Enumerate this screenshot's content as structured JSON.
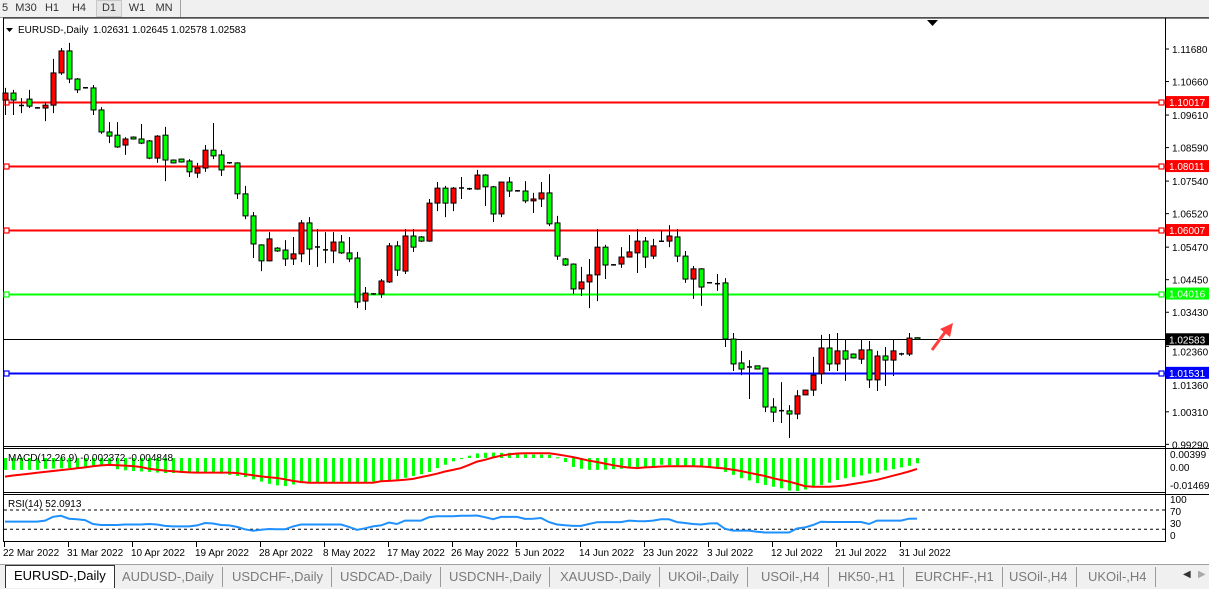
{
  "toolbar": {
    "timeframes": [
      "5",
      "M30",
      "H1",
      "H4",
      "D1",
      "W1",
      "MN"
    ],
    "active": "D1"
  },
  "chart": {
    "symbol_label": "EURUSD-,Daily",
    "ohlc_readout": "1.02631 1.02645 1.02578 1.02583",
    "price_ticks": [
      "1.11680",
      "1.10660",
      "1.09610",
      "1.08590",
      "1.07540",
      "1.06520",
      "1.05470",
      "1.04450",
      "1.03430",
      "1.02360",
      "1.01360",
      "1.00310",
      "0.99290"
    ],
    "levels": [
      {
        "price": "1.10017",
        "color": "#ff0000"
      },
      {
        "price": "1.08011",
        "color": "#ff0000"
      },
      {
        "price": "1.06007",
        "color": "#ff0000"
      },
      {
        "price": "1.04016",
        "color": "#00ff00"
      },
      {
        "price": "1.01531",
        "color": "#0000ff"
      }
    ],
    "bid_line": {
      "price": "1.02583",
      "color": "#000000"
    },
    "annotation_icon": "red-up-arrow",
    "shift_marker_icon": "down-triangle"
  },
  "chart_data": {
    "type": "candlestick",
    "bull_color": "#ff0000",
    "bear_color": "#00ff00",
    "ylim": [
      0.9929,
      1.1168
    ],
    "ohlc": [
      [
        1.1008,
        1.1046,
        1.0961,
        1.103
      ],
      [
        1.103,
        1.104,
        1.0961,
        1.1008
      ],
      [
        1.0992,
        1.1014,
        1.0967,
        1.099
      ],
      [
        1.1011,
        1.104,
        1.0983,
        1.0989
      ],
      [
        1.0984,
        1.0986,
        1.0981,
        1.0983
      ],
      [
        1.0983,
        1.1002,
        1.0942,
        1.0992
      ],
      [
        1.0992,
        1.1137,
        1.0967,
        1.1093
      ],
      [
        1.1093,
        1.1171,
        1.1087,
        1.1162
      ],
      [
        1.1162,
        1.1187,
        1.1061,
        1.1074
      ],
      [
        1.1074,
        1.1077,
        1.103,
        1.104
      ],
      [
        1.1047,
        1.1049,
        1.1044,
        1.1046
      ],
      [
        1.1046,
        1.1055,
        1.0961,
        1.0977
      ],
      [
        1.0977,
        1.0986,
        1.0902,
        1.0908
      ],
      [
        1.0908,
        1.0939,
        1.0873,
        1.0895
      ],
      [
        1.0898,
        1.0939,
        1.0858,
        1.0861
      ],
      [
        1.0867,
        1.0892,
        1.0836,
        1.0886
      ],
      [
        1.0892,
        1.0894,
        1.0884,
        1.0886
      ],
      [
        1.0886,
        1.0933,
        1.087,
        1.0873
      ],
      [
        1.088,
        1.0883,
        1.0823,
        1.0826
      ],
      [
        1.0826,
        1.0898,
        1.0811,
        1.0895
      ],
      [
        1.0898,
        1.0924,
        1.0754,
        1.082
      ],
      [
        1.082,
        1.0822,
        1.081,
        1.0811
      ],
      [
        1.0823,
        1.0825,
        1.0812,
        1.0814
      ],
      [
        1.0817,
        1.0823,
        1.0767,
        1.0783
      ],
      [
        1.0779,
        1.0811,
        1.0764,
        1.0795
      ],
      [
        1.0795,
        1.0867,
        1.0783,
        1.0851
      ],
      [
        1.0851,
        1.0936,
        1.0823,
        1.0833
      ],
      [
        1.0836,
        1.0851,
        1.077,
        1.0789
      ],
      [
        1.0812,
        1.0814,
        1.0808,
        1.0811
      ],
      [
        1.0811,
        1.0813,
        1.0698,
        1.0714
      ],
      [
        1.0714,
        1.0739,
        1.0635,
        1.0645
      ],
      [
        1.0645,
        1.0657,
        1.0513,
        1.0557
      ],
      [
        1.0554,
        1.0556,
        1.0472,
        1.0504
      ],
      [
        1.0504,
        1.0594,
        1.0502,
        1.0573
      ],
      [
        1.0544,
        1.0547,
        1.0532,
        1.0535
      ],
      [
        1.0538,
        1.0569,
        1.0488,
        1.051
      ],
      [
        1.051,
        1.0579,
        1.0491,
        1.0526
      ],
      [
        1.0526,
        1.0632,
        1.05,
        1.0623
      ],
      [
        1.0623,
        1.0641,
        1.0491,
        1.0541
      ],
      [
        1.0548,
        1.0604,
        1.0485,
        1.0547
      ],
      [
        1.0539,
        1.0594,
        1.0497,
        1.0538
      ],
      [
        1.0535,
        1.0594,
        1.0497,
        1.0563
      ],
      [
        1.0563,
        1.0585,
        1.0526,
        1.0529
      ],
      [
        1.0529,
        1.0579,
        1.05,
        1.051
      ],
      [
        1.0513,
        1.0532,
        1.0356,
        1.0375
      ],
      [
        1.0378,
        1.0422,
        1.035,
        1.0403
      ],
      [
        1.0401,
        1.0403,
        1.0398,
        1.04
      ],
      [
        1.04,
        1.0447,
        1.0388,
        1.0441
      ],
      [
        1.0438,
        1.056,
        1.0435,
        1.0551
      ],
      [
        1.0551,
        1.0566,
        1.0457,
        1.0475
      ],
      [
        1.0472,
        1.0604,
        1.0463,
        1.0582
      ],
      [
        1.0582,
        1.0604,
        1.0532,
        1.0547
      ],
      [
        1.0579,
        1.0582,
        1.0563,
        1.0566
      ],
      [
        1.0566,
        1.0698,
        1.0564,
        1.0685
      ],
      [
        1.0685,
        1.0751,
        1.066,
        1.0732
      ],
      [
        1.0732,
        1.0739,
        1.0641,
        1.0685
      ],
      [
        1.0685,
        1.0735,
        1.066,
        1.0732
      ],
      [
        1.0733,
        1.0767,
        1.0698,
        1.0732
      ],
      [
        1.0731,
        1.0733,
        1.0726,
        1.0729
      ],
      [
        1.0729,
        1.0789,
        1.0727,
        1.0773
      ],
      [
        1.0773,
        1.0776,
        1.0676,
        1.0736
      ],
      [
        1.0736,
        1.0739,
        1.0626,
        1.0651
      ],
      [
        1.0651,
        1.0752,
        1.0641,
        1.0751
      ],
      [
        1.0751,
        1.0767,
        1.0704,
        1.0723
      ],
      [
        1.0724,
        1.0726,
        1.0721,
        1.0723
      ],
      [
        1.0723,
        1.0754,
        1.0685,
        1.0692
      ],
      [
        1.0692,
        1.0717,
        1.0654,
        1.0698
      ],
      [
        1.0698,
        1.0751,
        1.0673,
        1.0717
      ],
      [
        1.0717,
        1.0776,
        1.0613,
        1.062
      ],
      [
        1.0623,
        1.0645,
        1.0507,
        1.0519
      ],
      [
        1.051,
        1.0513,
        1.0488,
        1.0491
      ],
      [
        1.0494,
        1.0496,
        1.04,
        1.0416
      ],
      [
        1.0416,
        1.0485,
        1.0394,
        1.0438
      ],
      [
        1.0438,
        1.051,
        1.0356,
        1.046
      ],
      [
        1.046,
        1.0604,
        1.0378,
        1.0547
      ],
      [
        1.0547,
        1.0554,
        1.0447,
        1.0491
      ],
      [
        1.0492,
        1.0494,
        1.0489,
        1.0491
      ],
      [
        1.0494,
        1.0547,
        1.0482,
        1.0516
      ],
      [
        1.0516,
        1.0585,
        1.0514,
        1.0532
      ],
      [
        1.0529,
        1.0604,
        1.0466,
        1.0566
      ],
      [
        1.0566,
        1.0579,
        1.0482,
        1.0516
      ],
      [
        1.0519,
        1.0573,
        1.051,
        1.0551
      ],
      [
        1.0565,
        1.06,
        1.0564,
        1.0566
      ],
      [
        1.0566,
        1.0616,
        1.0547,
        1.0582
      ],
      [
        1.0579,
        1.0604,
        1.05,
        1.0519
      ],
      [
        1.0519,
        1.0535,
        1.0435,
        1.0447
      ],
      [
        1.0447,
        1.0488,
        1.0385,
        1.0479
      ],
      [
        1.0479,
        1.0481,
        1.0363,
        1.0422
      ],
      [
        1.0436,
        1.0437,
        1.0433,
        1.0435
      ],
      [
        1.0433,
        1.0463,
        1.041,
        1.0432
      ],
      [
        1.0435,
        1.045,
        1.0234,
        1.0259
      ],
      [
        1.0259,
        1.0278,
        1.0159,
        1.0181
      ],
      [
        1.0184,
        1.0222,
        1.0146,
        1.0165
      ],
      [
        1.0172,
        1.0193,
        1.0071,
        1.0171
      ],
      [
        1.0175,
        1.0176,
        1.0164,
        1.0165
      ],
      [
        1.0168,
        1.017,
        1.003,
        1.0046
      ],
      [
        1.0046,
        1.0074,
        0.9999,
        1.003
      ],
      [
        1.0035,
        1.0124,
        0.9996,
        1.0034
      ],
      [
        1.0034,
        1.0052,
        0.9949,
        1.0024
      ],
      [
        1.0024,
        1.0099,
        1.0008,
        1.0081
      ],
      [
        1.0084,
        1.0101,
        1.0082,
        1.0099
      ],
      [
        1.0099,
        1.0203,
        1.0081,
        1.0146
      ],
      [
        1.015,
        1.0272,
        1.0118,
        1.0231
      ],
      [
        1.0231,
        1.0275,
        1.0159,
        1.0181
      ],
      [
        1.0181,
        1.0278,
        1.0159,
        1.0222
      ],
      [
        1.0222,
        1.0259,
        1.0128,
        1.0196
      ],
      [
        1.0212,
        1.0214,
        1.0198,
        1.02
      ],
      [
        1.0196,
        1.0259,
        1.0181,
        1.0225
      ],
      [
        1.0225,
        1.0253,
        1.0106,
        1.0131
      ],
      [
        1.0131,
        1.0222,
        1.0096,
        1.0206
      ],
      [
        1.0206,
        1.0234,
        1.0112,
        1.0193
      ],
      [
        1.0193,
        1.0259,
        1.0143,
        1.0222
      ],
      [
        1.0213,
        1.0216,
        1.0207,
        1.0212
      ],
      [
        1.0212,
        1.0278,
        1.0206,
        1.0262
      ],
      [
        1.02631,
        1.02645,
        1.02578,
        1.02583
      ]
    ],
    "date_labels": [
      "22 Mar 2022",
      "31 Mar 2022",
      "10 Apr 2022",
      "19 Apr 2022",
      "28 Apr 2022",
      "8 May 2022",
      "17 May 2022",
      "26 May 2022",
      "5 Jun 2022",
      "14 Jun 2022",
      "23 Jun 2022",
      "3 Jul 2022",
      "12 Jul 2022",
      "21 Jul 2022",
      "31 Jul 2022"
    ],
    "date_label_every_bars": 8
  },
  "macd": {
    "label": "MACD(12,26,9) -0.002372 -0.004848",
    "scale_labels": [
      "0.00399",
      "0.00",
      "-0.014693"
    ],
    "ylim": [
      -0.014693,
      0.00399
    ],
    "hist_color": "#00ff00",
    "signal_color": "#ff0000",
    "main": [
      -0.0053,
      -0.0053,
      -0.0053,
      -0.0053,
      -0.0053,
      -0.0048,
      -0.0047,
      -0.0046,
      -0.0045,
      -0.0044,
      -0.0042,
      -0.004,
      -0.0031,
      -0.003,
      -0.005,
      -0.0055,
      -0.0058,
      -0.006,
      -0.0062,
      -0.0065,
      -0.0067,
      -0.0067,
      -0.0066,
      -0.0068,
      -0.0067,
      -0.0065,
      -0.0066,
      -0.007,
      -0.0075,
      -0.008,
      -0.0085,
      -0.0095,
      -0.0105,
      -0.0115,
      -0.0122,
      -0.0125,
      -0.0118,
      -0.0112,
      -0.011,
      -0.0108,
      -0.011,
      -0.0108,
      -0.0105,
      -0.0112,
      -0.011,
      -0.0112,
      -0.0105,
      -0.01,
      -0.01,
      -0.0095,
      -0.0088,
      -0.008,
      -0.0072,
      -0.0062,
      -0.0045,
      -0.003,
      -0.0015,
      -0.0005,
      0.001,
      0.002,
      0.0023,
      0.0024,
      0.0023,
      0.0023,
      0.0022,
      0.0016,
      0.0015,
      0.0015,
      0.0014,
      0.0003,
      -0.0018,
      -0.004,
      -0.0048,
      -0.0053,
      -0.0053,
      -0.0052,
      -0.005,
      -0.0048,
      -0.0045,
      -0.004,
      -0.0038,
      -0.0037,
      -0.003,
      -0.0032,
      -0.0033,
      -0.0035,
      -0.0037,
      -0.004,
      -0.0045,
      -0.0048,
      -0.0062,
      -0.0075,
      -0.009,
      -0.01,
      -0.0112,
      -0.012,
      -0.0128,
      -0.0135,
      -0.0145,
      -0.0147,
      -0.014,
      -0.0128,
      -0.012,
      -0.011,
      -0.0098,
      -0.009,
      -0.0085,
      -0.0078,
      -0.007,
      -0.0065,
      -0.0055,
      -0.005,
      -0.0042,
      -0.0035,
      -0.002372
    ],
    "signal": [
      -0.0083,
      -0.0078,
      -0.0074,
      -0.007,
      -0.0066,
      -0.0062,
      -0.0058,
      -0.0054,
      -0.005,
      -0.0046,
      -0.0042,
      -0.0037,
      -0.0033,
      -0.0031,
      -0.0032,
      -0.0034,
      -0.0036,
      -0.004,
      -0.0048,
      -0.0052,
      -0.0056,
      -0.0059,
      -0.0062,
      -0.0064,
      -0.0065,
      -0.0065,
      -0.0065,
      -0.0065,
      -0.0065,
      -0.0067,
      -0.0072,
      -0.0077,
      -0.0082,
      -0.0086,
      -0.0089,
      -0.0095,
      -0.0102,
      -0.0107,
      -0.011,
      -0.011,
      -0.011,
      -0.011,
      -0.011,
      -0.011,
      -0.011,
      -0.011,
      -0.011,
      -0.0104,
      -0.0102,
      -0.01,
      -0.0097,
      -0.0093,
      -0.0085,
      -0.0078,
      -0.007,
      -0.006,
      -0.0053,
      -0.0045,
      -0.0031,
      -0.0016,
      -0.0008,
      0.0002,
      0.001,
      0.0016,
      0.002,
      0.0021,
      0.0021,
      0.0021,
      0.0021,
      0.0016,
      0.001,
      0.0004,
      -0.0004,
      -0.0012,
      -0.0018,
      -0.0025,
      -0.0032,
      -0.0038,
      -0.0043,
      -0.0045,
      -0.0042,
      -0.004,
      -0.0038,
      -0.0037,
      -0.0037,
      -0.0037,
      -0.0037,
      -0.0038,
      -0.004,
      -0.0044,
      -0.0047,
      -0.0052,
      -0.0058,
      -0.0066,
      -0.0073,
      -0.008,
      -0.009,
      -0.0098,
      -0.0105,
      -0.0115,
      -0.0125,
      -0.0128,
      -0.0128,
      -0.0128,
      -0.0126,
      -0.0122,
      -0.0116,
      -0.011,
      -0.0104,
      -0.0097,
      -0.0088,
      -0.0079,
      -0.007,
      -0.006,
      -0.004848
    ]
  },
  "rsi": {
    "label": "RSI(14) 52.0913",
    "scale_labels": [
      "100",
      "70",
      "30",
      "0"
    ],
    "levels": [
      70,
      30
    ],
    "color": "#1e90ff",
    "values": [
      46,
      46,
      46,
      46,
      46,
      48,
      56,
      58,
      52,
      51,
      49,
      41,
      39,
      39,
      39,
      40,
      40,
      40,
      41,
      40,
      37,
      36,
      36,
      36,
      38,
      43,
      42,
      39,
      38,
      35,
      30,
      27,
      29,
      30.6,
      30,
      30,
      36,
      40,
      40,
      40,
      40,
      40,
      40,
      35,
      29,
      32,
      36,
      38,
      44,
      41,
      48,
      48,
      48,
      55,
      57,
      57,
      57,
      58,
      58,
      58.5,
      55,
      51,
      55.7,
      55.7,
      55.7,
      51.5,
      52,
      53.5,
      45,
      40,
      38.4,
      37,
      37,
      41,
      44.8,
      45,
      45,
      45,
      48,
      47,
      46.6,
      48,
      50.8,
      50.8,
      45,
      43,
      41,
      40,
      42,
      42.6,
      31,
      27.4,
      27.4,
      27.4,
      25,
      23.3,
      23.3,
      23.3,
      23.3,
      31.6,
      34,
      39,
      45.8,
      45.2,
      45.2,
      45.2,
      45.2,
      45.2,
      41,
      48,
      48,
      48,
      48,
      52,
      52.0913
    ]
  },
  "tabs": {
    "items": [
      "EURUSD-,Daily",
      "AUDUSD-,Daily",
      "USDCHF-,Daily",
      "USDCAD-,Daily",
      "USDCNH-,Daily",
      "XAUUSD-,Daily",
      "UKOil-,Daily",
      "USOil-,H4",
      "HK50-,H1",
      "EURCHF-,H1",
      "USOil-,H4",
      "UKOil-,H4"
    ],
    "active": "EURUSD-,Daily",
    "scroll_left_icon": "◀",
    "scroll_right_icon": "▶"
  }
}
